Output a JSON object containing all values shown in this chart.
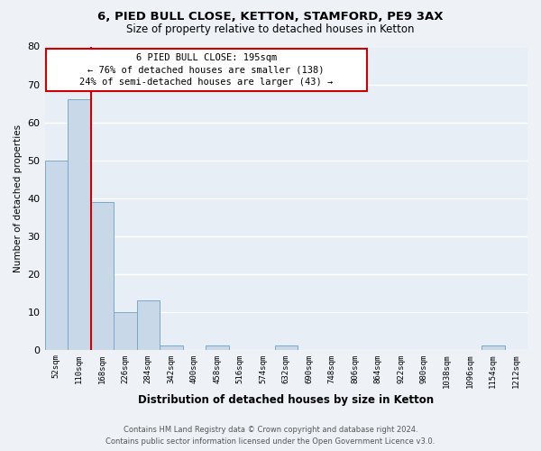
{
  "title": "6, PIED BULL CLOSE, KETTON, STAMFORD, PE9 3AX",
  "subtitle": "Size of property relative to detached houses in Ketton",
  "xlabel": "Distribution of detached houses by size in Ketton",
  "ylabel": "Number of detached properties",
  "bin_labels": [
    "52sqm",
    "110sqm",
    "168sqm",
    "226sqm",
    "284sqm",
    "342sqm",
    "400sqm",
    "458sqm",
    "516sqm",
    "574sqm",
    "632sqm",
    "690sqm",
    "748sqm",
    "806sqm",
    "864sqm",
    "922sqm",
    "980sqm",
    "1038sqm",
    "1096sqm",
    "1154sqm",
    "1212sqm"
  ],
  "bar_heights": [
    50,
    66,
    39,
    10,
    13,
    1,
    0,
    1,
    0,
    0,
    1,
    0,
    0,
    0,
    0,
    0,
    0,
    0,
    0,
    1,
    0
  ],
  "bar_color": "#c8d8e8",
  "bar_edge_color": "#7aaac8",
  "property_line_color": "#cc0000",
  "annotation_text": "6 PIED BULL CLOSE: 195sqm\n← 76% of detached houses are smaller (138)\n24% of semi-detached houses are larger (43) →",
  "annotation_box_color": "#cc0000",
  "ylim": [
    0,
    80
  ],
  "yticks": [
    0,
    10,
    20,
    30,
    40,
    50,
    60,
    70,
    80
  ],
  "footer_line1": "Contains HM Land Registry data © Crown copyright and database right 2024.",
  "footer_line2": "Contains public sector information licensed under the Open Government Licence v3.0.",
  "bg_color": "#eef2f7",
  "plot_bg_color": "#e8eef6",
  "grid_color": "#ffffff"
}
